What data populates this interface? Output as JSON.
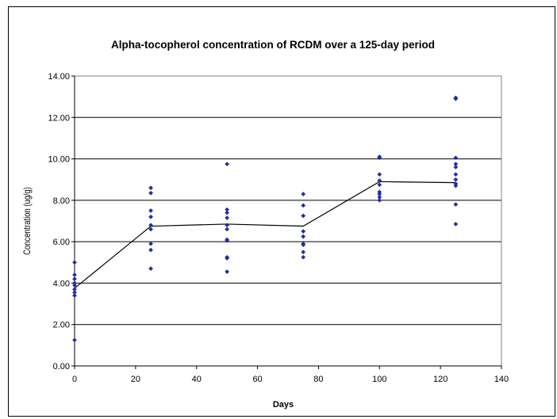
{
  "chart_data": {
    "type": "scatter",
    "title": "Alpha-tocopherol concentration of RCDM over a 125-day period",
    "xlabel": "Days",
    "ylabel": "Concentration (ug/g)",
    "xlim": [
      0,
      140
    ],
    "ylim": [
      0,
      14
    ],
    "x_ticks": [
      "0",
      "20",
      "40",
      "60",
      "80",
      "100",
      "120",
      "140"
    ],
    "y_ticks": [
      "0.00",
      "2.00",
      "4.00",
      "6.00",
      "8.00",
      "10.00",
      "12.00",
      "14.00"
    ],
    "grid": "horizontal",
    "legend": "none",
    "colors": {
      "points": "#1f2f9c",
      "line": "#000000",
      "grid": "#000000",
      "plot_area": "#ffffff"
    },
    "series": [
      {
        "kind": "points",
        "points": [
          [
            0,
            5.0
          ],
          [
            0,
            4.4
          ],
          [
            0,
            4.2
          ],
          [
            0,
            4.0
          ],
          [
            0,
            3.9
          ],
          [
            0,
            3.7
          ],
          [
            0,
            3.55
          ],
          [
            0,
            3.4
          ],
          [
            0,
            1.25
          ],
          [
            25,
            8.6
          ],
          [
            25,
            8.35
          ],
          [
            25,
            7.5
          ],
          [
            25,
            7.2
          ],
          [
            25,
            6.8
          ],
          [
            25,
            6.6
          ],
          [
            25,
            5.9
          ],
          [
            25,
            5.6
          ],
          [
            25,
            4.7
          ],
          [
            50,
            9.75
          ],
          [
            50,
            7.55
          ],
          [
            50,
            7.4
          ],
          [
            50,
            7.15
          ],
          [
            50,
            6.8
          ],
          [
            50,
            6.6
          ],
          [
            50,
            6.1
          ],
          [
            50,
            6.05
          ],
          [
            50,
            5.25
          ],
          [
            50,
            5.2
          ],
          [
            50,
            4.55
          ],
          [
            75,
            8.3
          ],
          [
            75,
            7.75
          ],
          [
            75,
            7.25
          ],
          [
            75,
            6.5
          ],
          [
            75,
            6.25
          ],
          [
            75,
            5.9
          ],
          [
            75,
            5.85
          ],
          [
            75,
            5.5
          ],
          [
            75,
            5.25
          ],
          [
            100,
            10.1
          ],
          [
            100,
            10.05
          ],
          [
            100,
            9.25
          ],
          [
            100,
            8.95
          ],
          [
            100,
            8.75
          ],
          [
            100,
            8.4
          ],
          [
            100,
            8.3
          ],
          [
            100,
            8.15
          ],
          [
            100,
            8.0
          ],
          [
            125,
            12.95
          ],
          [
            125,
            12.9
          ],
          [
            125,
            10.05
          ],
          [
            125,
            9.75
          ],
          [
            125,
            9.6
          ],
          [
            125,
            9.25
          ],
          [
            125,
            9.0
          ],
          [
            125,
            8.8
          ],
          [
            125,
            8.7
          ],
          [
            125,
            7.8
          ],
          [
            125,
            6.85
          ]
        ]
      },
      {
        "kind": "line",
        "points": [
          [
            0,
            3.75
          ],
          [
            25,
            6.75
          ],
          [
            50,
            6.85
          ],
          [
            75,
            6.75
          ],
          [
            100,
            8.9
          ],
          [
            125,
            8.85
          ]
        ]
      }
    ]
  }
}
